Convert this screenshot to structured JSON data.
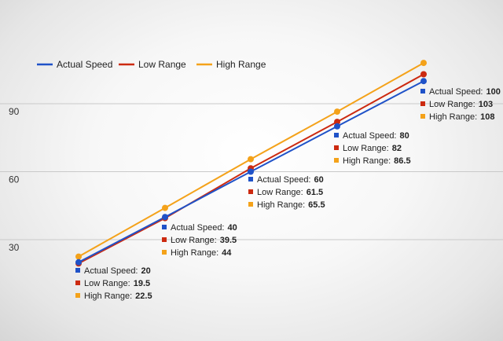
{
  "chart_data": {
    "type": "line",
    "title": "",
    "xlabel": "",
    "ylabel": "",
    "x": [
      1,
      2,
      3,
      4,
      5
    ],
    "ylim": [
      22,
      118
    ],
    "yticks": [
      30,
      60,
      90
    ],
    "grid": true,
    "legend_position": "top-left",
    "series": [
      {
        "name": "Actual Speed",
        "color": "#1f52c8",
        "values": [
          20,
          40,
          60,
          80,
          100
        ]
      },
      {
        "name": "Low Range",
        "color": "#cc2a10",
        "values": [
          19.5,
          39.5,
          61.5,
          82,
          103
        ]
      },
      {
        "name": "High Range",
        "color": "#f4a21a",
        "values": [
          22.5,
          44,
          65.5,
          86.5,
          108
        ]
      }
    ],
    "annotations": [
      {
        "x": 1,
        "items": [
          {
            "label": "Actual Speed:",
            "value": "20"
          },
          {
            "label": "Low Range:",
            "value": "19.5"
          },
          {
            "label": "High Range:",
            "value": "22.5"
          }
        ]
      },
      {
        "x": 2,
        "items": [
          {
            "label": "Actual Speed:",
            "value": "40"
          },
          {
            "label": "Low Range:",
            "value": "39.5"
          },
          {
            "label": "High Range:",
            "value": "44"
          }
        ]
      },
      {
        "x": 3,
        "items": [
          {
            "label": "Actual Speed:",
            "value": "60"
          },
          {
            "label": "Low Range:",
            "value": "61.5"
          },
          {
            "label": "High Range:",
            "value": "65.5"
          }
        ]
      },
      {
        "x": 4,
        "items": [
          {
            "label": "Actual Speed:",
            "value": "80"
          },
          {
            "label": "Low Range:",
            "value": "82"
          },
          {
            "label": "High Range:",
            "value": "86.5"
          }
        ]
      },
      {
        "x": 5,
        "items": [
          {
            "label": "Actual Speed:",
            "value": "100"
          },
          {
            "label": "Low Range:",
            "value": "103"
          },
          {
            "label": "High Range:",
            "value": "108"
          }
        ]
      }
    ]
  }
}
